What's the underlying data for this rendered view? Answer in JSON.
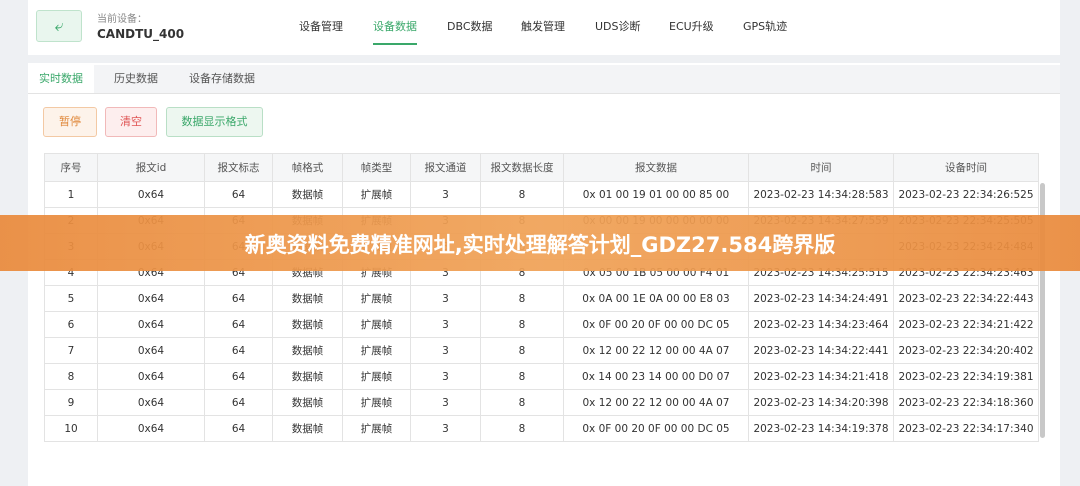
{
  "header": {
    "device_label": "当前设备：",
    "device_name": "CANDTU_400",
    "nav": [
      "设备管理",
      "设备数据",
      "DBC数据",
      "触发管理",
      "UDS诊断",
      "ECU升级",
      "GPS轨迹"
    ],
    "active_nav": 1
  },
  "sub_tabs": [
    "实时数据",
    "历史数据",
    "设备存储数据"
  ],
  "active_sub_tab": 0,
  "buttons": [
    "暂停",
    "清空",
    "数据显示格式"
  ],
  "table": {
    "columns": [
      "序号",
      "报文id",
      "报文标志",
      "帧格式",
      "帧类型",
      "报文通道",
      "报文数据长度",
      "报文数据",
      "时间",
      "设备时间"
    ],
    "rows": [
      [
        "1",
        "0x64",
        "64",
        "数据帧",
        "扩展帧",
        "3",
        "8",
        "0x 01 00 19 01 00 00 85 00",
        "2023-02-23 14:34:28:583",
        "2023-02-23 22:34:26:525"
      ],
      [
        "2",
        "0x64",
        "64",
        "数据帧",
        "扩展帧",
        "3",
        "8",
        "0x 00 00 19 00 00 00 00 00",
        "2023-02-23 14:34:27:559",
        "2023-02-23 22:34:25:505"
      ],
      [
        "3",
        "0x64",
        "64",
        "数据帧",
        "扩展帧",
        "3",
        "8",
        null,
        null,
        "2023-02-23 22:34:24:484"
      ],
      [
        "4",
        "0x64",
        "64",
        "数据帧",
        "扩展帧",
        "3",
        "8",
        "0x 05 00 1B 05 00 00 F4 01",
        "2023-02-23 14:34:25:515",
        "2023-02-23 22:34:23:463"
      ],
      [
        "5",
        "0x64",
        "64",
        "数据帧",
        "扩展帧",
        "3",
        "8",
        "0x 0A 00 1E 0A 00 00 E8 03",
        "2023-02-23 14:34:24:491",
        "2023-02-23 22:34:22:443"
      ],
      [
        "6",
        "0x64",
        "64",
        "数据帧",
        "扩展帧",
        "3",
        "8",
        "0x 0F 00 20 0F 00 00 DC 05",
        "2023-02-23 14:34:23:464",
        "2023-02-23 22:34:21:422"
      ],
      [
        "7",
        "0x64",
        "64",
        "数据帧",
        "扩展帧",
        "3",
        "8",
        "0x 12 00 22 12 00 00 4A 07",
        "2023-02-23 14:34:22:441",
        "2023-02-23 22:34:20:402"
      ],
      [
        "8",
        "0x64",
        "64",
        "数据帧",
        "扩展帧",
        "3",
        "8",
        "0x 14 00 23 14 00 00 D0 07",
        "2023-02-23 14:34:21:418",
        "2023-02-23 22:34:19:381"
      ],
      [
        "9",
        "0x64",
        "64",
        "数据帧",
        "扩展帧",
        "3",
        "8",
        "0x 12 00 22 12 00 00 4A 07",
        "2023-02-23 14:34:20:398",
        "2023-02-23 22:34:18:360"
      ],
      [
        "10",
        "0x64",
        "64",
        "数据帧",
        "扩展帧",
        "3",
        "8",
        "0x 0F 00 20 0F 00 00 DC 05",
        "2023-02-23 14:34:19:378",
        "2023-02-23 22:34:17:340"
      ]
    ]
  },
  "banner": {
    "text": "新奥资料免费精准网址,实时处理解答计划_GDZ27.584跨界版"
  }
}
